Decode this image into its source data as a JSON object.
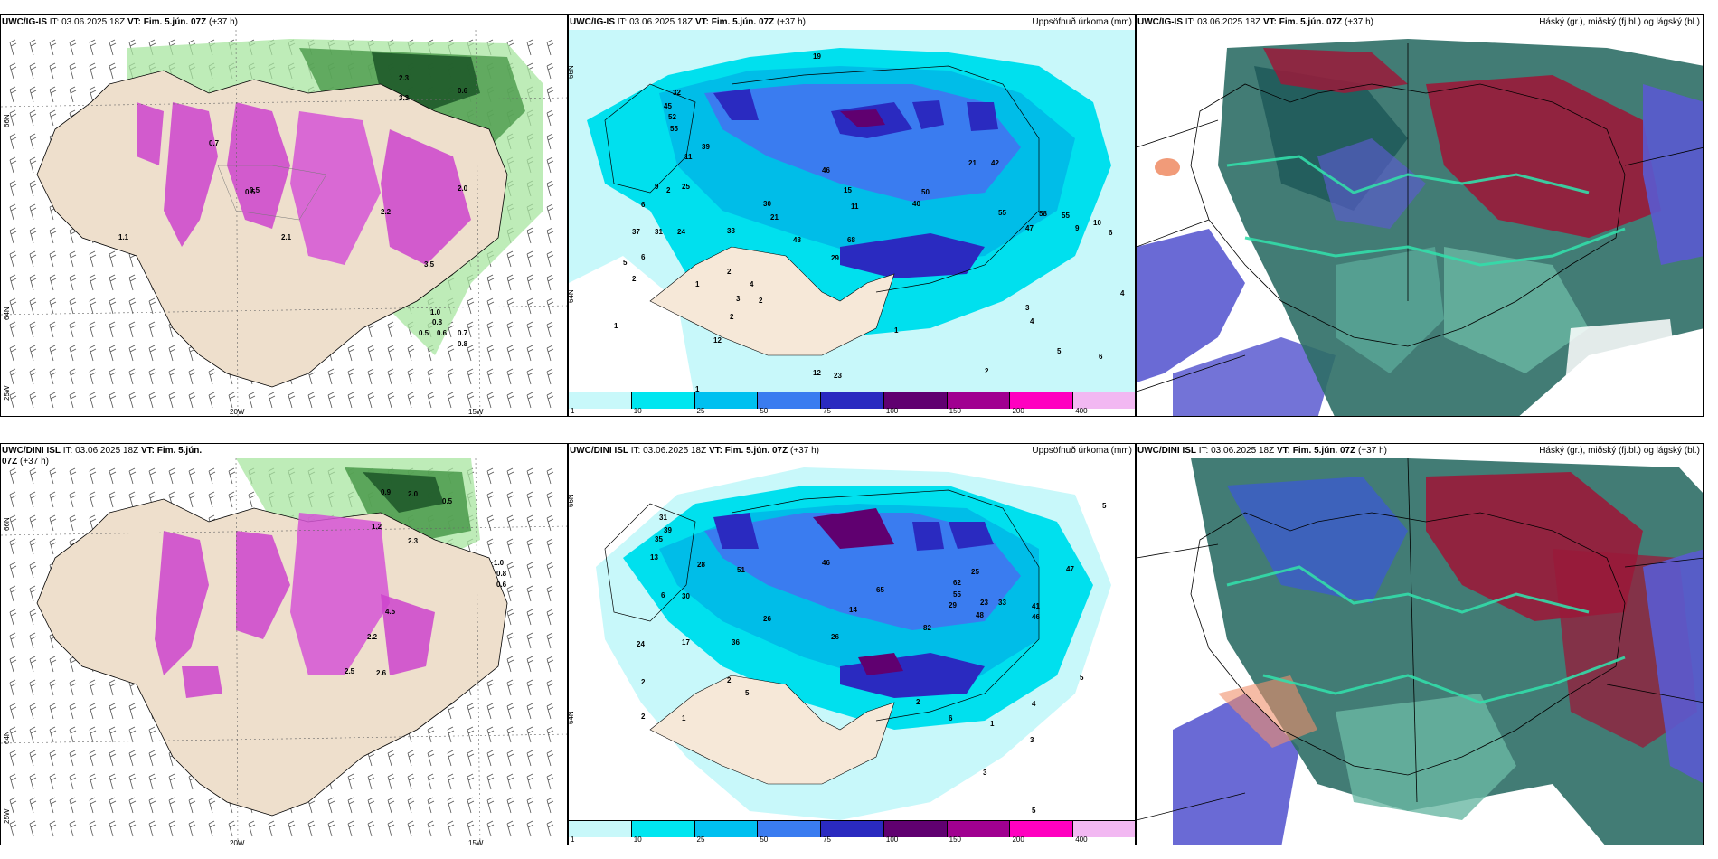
{
  "rows": [
    {
      "model": "UWC/IG-IS",
      "it_label": "IT:",
      "it_value": "03.06.2025 18Z",
      "vt_label": "VT:",
      "vt_value": "Fim. 5.jún. 07Z",
      "lead": "(+37 h)",
      "precip_title": "Uppsöfnuð úrkoma (mm)",
      "cloud_title": "Háský (gr.), miðský (fj.bl.) og lágský (bl.)"
    },
    {
      "model": "UWC/DINI ISL",
      "it_label": "IT:",
      "it_value": "03.06.2025 18Z",
      "vt_label": "VT:",
      "vt_value": "Fim. 5.jún. 07Z",
      "lead": "(+37 h)",
      "precip_title": "Uppsöfnuð úrkoma (mm)",
      "cloud_title": "Háský (gr.), miðský (fj.bl.) og lágský (bl.)"
    }
  ],
  "axes": {
    "lat_66": "66N",
    "lat_64": "64N",
    "lon_20": "20W",
    "lon_15": "15W",
    "lon_25": "25W"
  },
  "legend": {
    "labels": [
      "1",
      "10",
      "25",
      "50",
      "75",
      "100",
      "150",
      "200",
      "400"
    ],
    "colors": [
      "#c8f8fa",
      "#00e6f0",
      "#00c0f0",
      "#3a7cf0",
      "#2a2ac0",
      "#600070",
      "#a00090",
      "#ff00c0",
      "#f2b8f2"
    ]
  },
  "precip_values_top": [
    "19",
    "32",
    "45",
    "52",
    "55",
    "39",
    "11",
    "9",
    "2",
    "6",
    "25",
    "30",
    "21",
    "37",
    "31",
    "24",
    "33",
    "6",
    "5",
    "2",
    "1",
    "2",
    "4",
    "3",
    "2",
    "2",
    "12",
    "1",
    "12",
    "23",
    "1",
    "29",
    "68",
    "48",
    "46",
    "15",
    "11",
    "40",
    "50",
    "21",
    "42",
    "55",
    "47",
    "58",
    "55",
    "9",
    "10",
    "6",
    "4",
    "3",
    "4",
    "5",
    "6",
    "2",
    "1"
  ],
  "precip_values_bottom": [
    "31",
    "39",
    "35",
    "13",
    "28",
    "6",
    "30",
    "51",
    "26",
    "24",
    "17",
    "36",
    "2",
    "2",
    "5",
    "1",
    "46",
    "14",
    "65",
    "26",
    "25",
    "33",
    "23",
    "47",
    "62",
    "55",
    "29",
    "48",
    "82",
    "41",
    "46",
    "5",
    "5",
    "4",
    "3",
    "1",
    "6",
    "2",
    "3",
    "5",
    "2"
  ],
  "wind_values_top": [
    "2.3",
    "0.6",
    "3.3",
    "0.7",
    "0.5",
    "1.1",
    "2.2",
    "2.0",
    "0.5",
    "2.1",
    "3.5",
    "1.0",
    "0.8",
    "0.5",
    "0.6",
    "0.7",
    "0.8"
  ],
  "wind_values_bottom": [
    "0.9",
    "2.0",
    "0.5",
    "2.3",
    "1.2",
    "2.2",
    "4.5",
    "2.5",
    "2.6",
    "1.0",
    "0.8",
    "0.6"
  ]
}
